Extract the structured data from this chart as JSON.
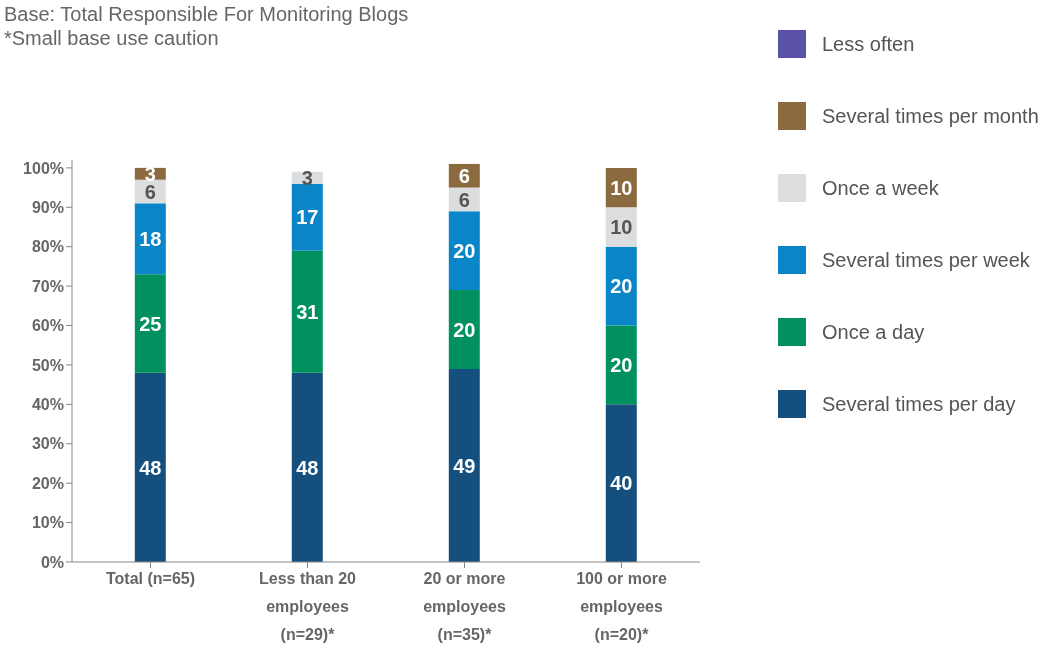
{
  "chart_data": {
    "type": "bar",
    "stacked": true,
    "annotations": [
      "Base: Total Responsible For Monitoring Blogs",
      "*Small base use caution"
    ],
    "categories": [
      "Total (n=65)",
      "Less than 20 employees (n=29)*",
      "20 or more employees (n=35)*",
      "100 or more employees (n=20)*"
    ],
    "series": [
      {
        "name": "Several times per day",
        "color": "#154f7e",
        "values": [
          48,
          48,
          49,
          40
        ]
      },
      {
        "name": "Once a day",
        "color": "#00915e",
        "values": [
          25,
          31,
          20,
          20
        ]
      },
      {
        "name": "Several times per week",
        "color": "#0a86c8",
        "values": [
          18,
          17,
          20,
          20
        ]
      },
      {
        "name": "Once a week",
        "color": "#dcdddf",
        "values": [
          6,
          3,
          6,
          10
        ]
      },
      {
        "name": "Several times per month",
        "color": "#8c6a3f",
        "values": [
          3,
          null,
          6,
          10
        ]
      },
      {
        "name": "Less often",
        "color": "#5a52a6",
        "values": [
          null,
          null,
          null,
          null
        ]
      }
    ],
    "ylim": [
      0,
      102
    ],
    "yticks": [
      {
        "value": 0,
        "label": "0%"
      },
      {
        "value": 10,
        "label": "10%"
      },
      {
        "value": 20,
        "label": "20%"
      },
      {
        "value": 30,
        "label": "30%"
      },
      {
        "value": 40,
        "label": "40%"
      },
      {
        "value": 50,
        "label": "50%"
      },
      {
        "value": 60,
        "label": "60%"
      },
      {
        "value": 70,
        "label": "70%"
      },
      {
        "value": 80,
        "label": "80%"
      },
      {
        "value": 90,
        "label": "90%"
      },
      {
        "value": 100,
        "label": "100%"
      }
    ],
    "grid": false,
    "legend": "right",
    "data_labels": true
  }
}
